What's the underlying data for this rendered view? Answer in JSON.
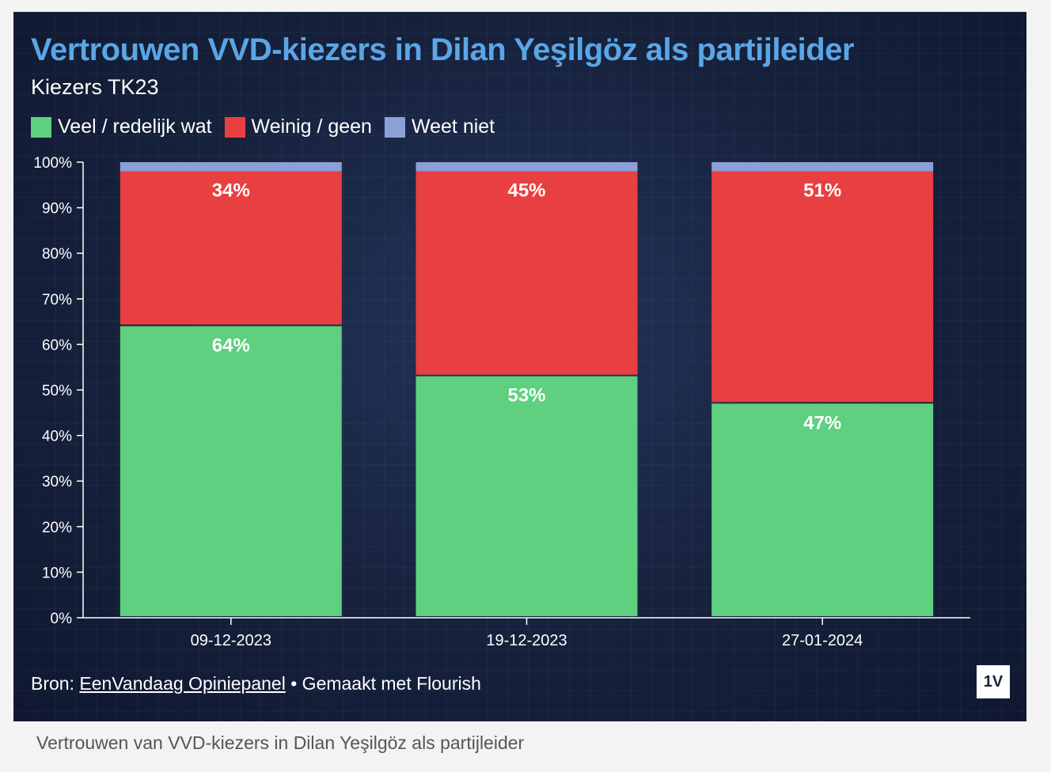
{
  "colors": {
    "green": "#5fcf80",
    "red": "#e84040",
    "blue": "#8c9fd6",
    "title": "#5aa6e6"
  },
  "chart_data": {
    "type": "bar",
    "stacked": true,
    "title": "Vertrouwen VVD-kiezers in Dilan Yeşilgöz als partijleider",
    "subtitle": "Kiezers TK23",
    "categories": [
      "09-12-2023",
      "19-12-2023",
      "27-01-2024"
    ],
    "series": [
      {
        "name": "Veel / redelijk wat",
        "values": [
          64,
          53,
          47
        ],
        "labels": [
          "64%",
          "53%",
          "47%"
        ],
        "color": "#5fcf80"
      },
      {
        "name": "Weinig / geen",
        "values": [
          34,
          45,
          51
        ],
        "labels": [
          "34%",
          "45%",
          "51%"
        ],
        "color": "#e84040"
      },
      {
        "name": "Weet niet",
        "values": [
          2,
          2,
          2
        ],
        "color": "#8c9fd6"
      }
    ],
    "ylim": [
      0,
      100
    ],
    "yticks": [
      "0%",
      "10%",
      "20%",
      "30%",
      "40%",
      "50%",
      "60%",
      "70%",
      "80%",
      "90%",
      "100%"
    ],
    "legend_position": "top-left",
    "grid": false
  },
  "footer": {
    "source_prefix": "Bron: ",
    "source_link": "EenVandaag Opiniepanel",
    "made_with": " • Gemaakt met Flourish"
  },
  "logo_text": "1V",
  "caption": "Vertrouwen van VVD-kiezers in Dilan Yeşilgöz als partijleider"
}
